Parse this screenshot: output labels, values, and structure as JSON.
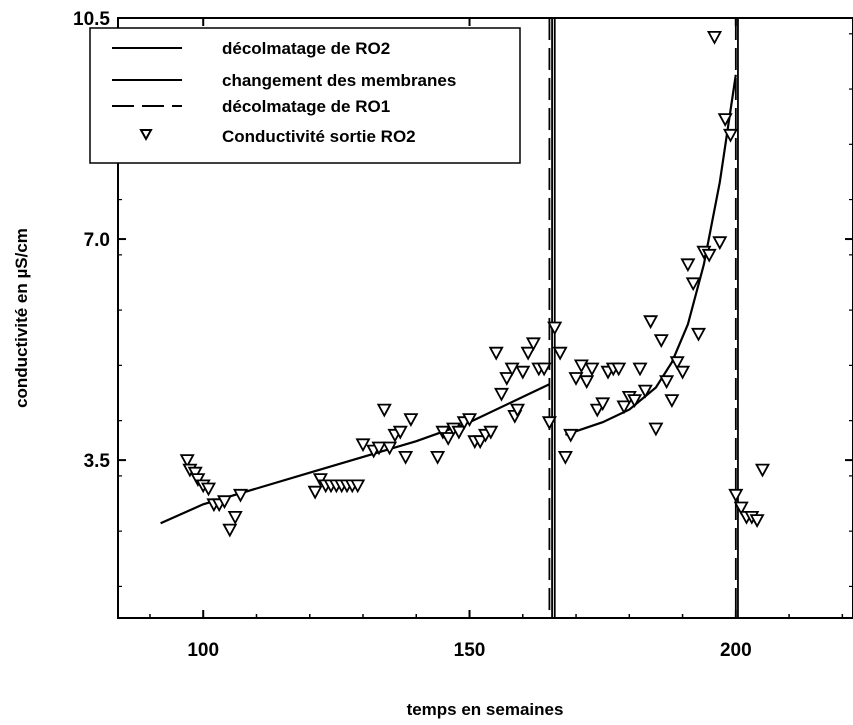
{
  "chart_data": {
    "type": "scatter",
    "xlabel": "temps en semaines",
    "ylabel": "conductivité en µS/cm",
    "xlim": [
      84,
      222
    ],
    "ylim": [
      1.0,
      10.5
    ],
    "x_ticks": [
      100,
      150,
      200
    ],
    "y_ticks": [
      3.5,
      7.0,
      10.5
    ],
    "y_tick_labels": [
      "3.5",
      "7.0",
      "10.5"
    ],
    "grid": false,
    "legend_position": "top-left",
    "legend": [
      {
        "label": "décolmatage de RO2",
        "style": "solid"
      },
      {
        "label": "changement des membranes",
        "style": "solid"
      },
      {
        "label": "décolmatage de RO1",
        "style": "dashed"
      },
      {
        "label": "Conductivité sortie RO2",
        "style": "marker-triangle-down"
      }
    ],
    "vertical_lines": [
      {
        "x": 165,
        "style": "dashed"
      },
      {
        "x": 165.5,
        "style": "solid"
      },
      {
        "x": 166,
        "style": "solid"
      },
      {
        "x": 200,
        "style": "dashed"
      },
      {
        "x": 200.4,
        "style": "solid"
      }
    ],
    "fit_segments": [
      {
        "style": "solid",
        "x": [
          92,
          100,
          110,
          120,
          130,
          140,
          150,
          160,
          165
        ],
        "y": [
          2.5,
          2.8,
          3.05,
          3.3,
          3.55,
          3.8,
          4.1,
          4.5,
          4.7
        ]
      },
      {
        "style": "solid",
        "x": [
          168,
          175,
          180,
          185,
          188,
          191,
          194,
          197,
          200
        ],
        "y": [
          3.9,
          4.1,
          4.3,
          4.65,
          5.05,
          5.65,
          6.6,
          7.9,
          9.6
        ]
      }
    ],
    "series": [
      {
        "name": "Conductivité sortie RO2",
        "marker": "triangle-down",
        "points": [
          [
            97,
            3.5
          ],
          [
            97.5,
            3.35
          ],
          [
            98.5,
            3.3
          ],
          [
            99,
            3.2
          ],
          [
            100,
            3.1
          ],
          [
            101,
            3.05
          ],
          [
            102,
            2.8
          ],
          [
            103,
            2.8
          ],
          [
            104,
            2.85
          ],
          [
            105,
            2.4
          ],
          [
            106,
            2.6
          ],
          [
            107,
            2.95
          ],
          [
            121,
            3.0
          ],
          [
            122,
            3.2
          ],
          [
            123,
            3.1
          ],
          [
            124,
            3.1
          ],
          [
            125,
            3.1
          ],
          [
            126,
            3.1
          ],
          [
            127,
            3.1
          ],
          [
            128,
            3.1
          ],
          [
            129,
            3.1
          ],
          [
            130,
            3.75
          ],
          [
            132,
            3.65
          ],
          [
            133,
            3.7
          ],
          [
            134,
            4.3
          ],
          [
            135,
            3.7
          ],
          [
            136,
            3.9
          ],
          [
            137,
            3.95
          ],
          [
            138,
            3.55
          ],
          [
            139,
            4.15
          ],
          [
            144,
            3.55
          ],
          [
            145,
            3.95
          ],
          [
            146,
            3.85
          ],
          [
            147,
            4.0
          ],
          [
            148,
            3.95
          ],
          [
            149,
            4.1
          ],
          [
            150,
            4.15
          ],
          [
            151,
            3.8
          ],
          [
            152,
            3.8
          ],
          [
            153,
            3.9
          ],
          [
            154,
            3.95
          ],
          [
            155,
            5.2
          ],
          [
            156,
            4.55
          ],
          [
            157,
            4.8
          ],
          [
            158,
            4.95
          ],
          [
            158.5,
            4.2
          ],
          [
            159,
            4.3
          ],
          [
            160,
            4.9
          ],
          [
            161,
            5.2
          ],
          [
            162,
            5.35
          ],
          [
            163,
            4.95
          ],
          [
            164,
            4.95
          ],
          [
            165,
            4.1
          ],
          [
            166,
            5.6
          ],
          [
            167,
            5.2
          ],
          [
            168,
            3.55
          ],
          [
            169,
            3.9
          ],
          [
            170,
            4.8
          ],
          [
            171,
            5.0
          ],
          [
            172,
            4.75
          ],
          [
            173,
            4.95
          ],
          [
            174,
            4.3
          ],
          [
            175,
            4.4
          ],
          [
            176,
            4.9
          ],
          [
            177,
            4.95
          ],
          [
            178,
            4.95
          ],
          [
            179,
            4.35
          ],
          [
            180,
            4.5
          ],
          [
            181,
            4.45
          ],
          [
            182,
            4.95
          ],
          [
            183,
            4.6
          ],
          [
            184,
            5.7
          ],
          [
            185,
            4.0
          ],
          [
            186,
            5.4
          ],
          [
            187,
            4.75
          ],
          [
            188,
            4.45
          ],
          [
            189,
            5.05
          ],
          [
            190,
            4.9
          ],
          [
            191,
            6.6
          ],
          [
            192,
            6.3
          ],
          [
            193,
            5.5
          ],
          [
            194,
            6.8
          ],
          [
            195,
            6.75
          ],
          [
            196,
            10.2
          ],
          [
            197,
            6.95
          ],
          [
            198,
            8.9
          ],
          [
            199,
            8.65
          ],
          [
            200,
            2.95
          ],
          [
            201,
            2.75
          ],
          [
            202,
            2.6
          ],
          [
            203,
            2.6
          ],
          [
            204,
            2.55
          ],
          [
            205,
            3.35
          ]
        ]
      }
    ]
  }
}
